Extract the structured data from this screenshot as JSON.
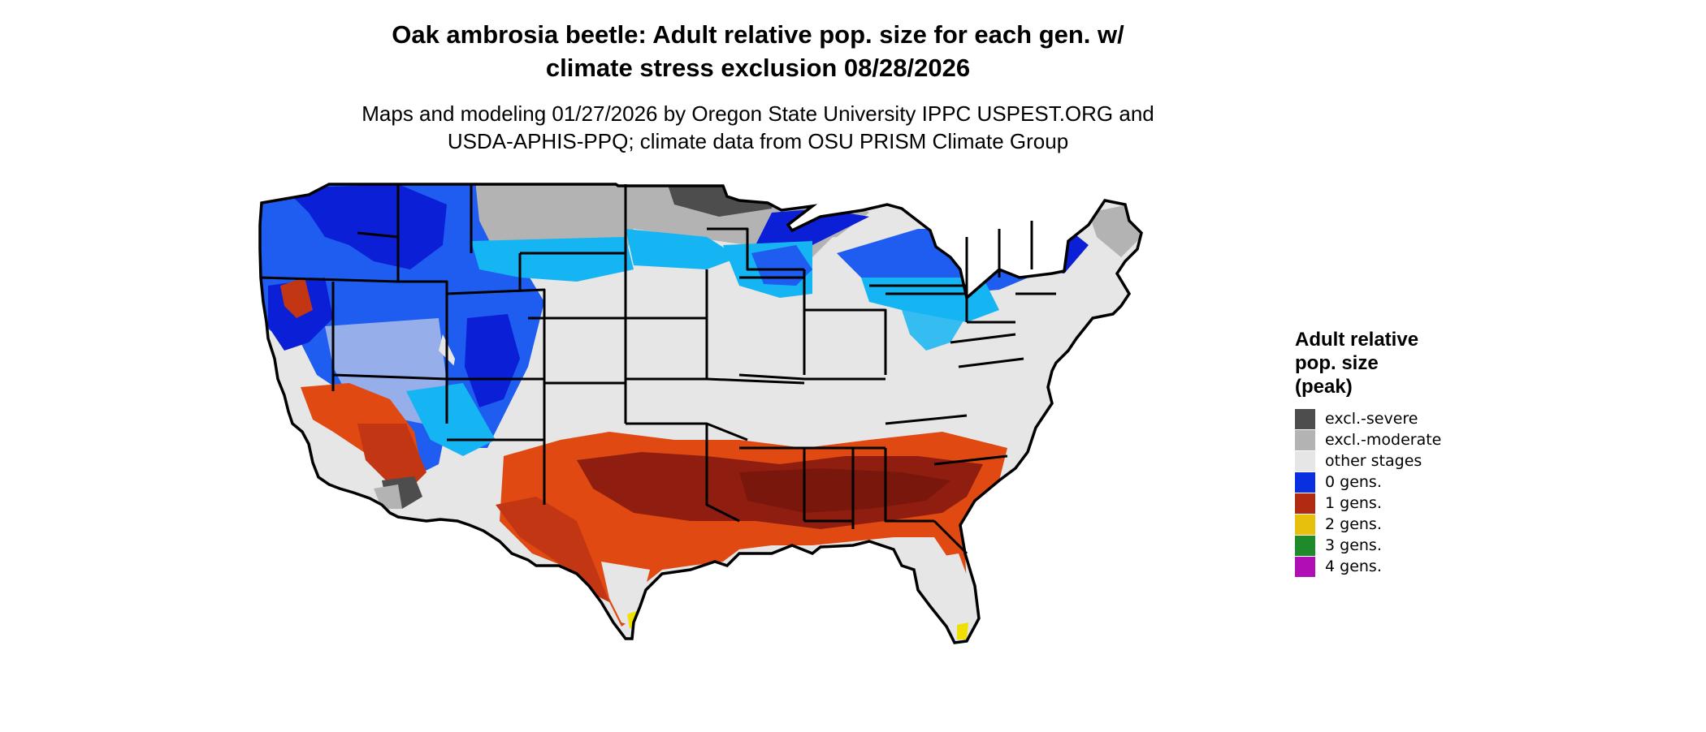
{
  "title_line1": "Oak ambrosia beetle: Adult relative pop. size for each gen. w/",
  "title_line2": "climate stress exclusion 08/28/2026",
  "subtitle_line1": "Maps and modeling 01/27/2026 by Oregon State University IPPC USPEST.ORG and",
  "subtitle_line2": "USDA-APHIS-PPQ; climate data from OSU PRISM Climate Group",
  "legend": {
    "title_line1": "Adult relative",
    "title_line2": "pop. size",
    "title_line3": "(peak)",
    "items": [
      {
        "label": "excl.-severe",
        "color": "#4d4d4d"
      },
      {
        "label": "excl.-moderate",
        "color": "#b3b3b3"
      },
      {
        "label": "other stages",
        "color": "#e6e6e6"
      },
      {
        "label": "0 gens.",
        "color": "#0a2fe0"
      },
      {
        "label": "1 gens.",
        "color": "#b32a12"
      },
      {
        "label": "2 gens.",
        "color": "#e6c00d"
      },
      {
        "label": "3 gens.",
        "color": "#1f8a2a"
      },
      {
        "label": "4 gens.",
        "color": "#b00fb5"
      }
    ]
  },
  "map_colors": {
    "blue_dark": "#0a1fd6",
    "blue_mid": "#1f5cf0",
    "blue_light": "#15b4f2",
    "red_dark": "#8f1e10",
    "red_mid": "#c23614",
    "red_bright": "#e04a12",
    "grey_light": "#e6e6e6",
    "grey_mid": "#b3b3b3",
    "grey_dark": "#4d4d4d",
    "yellow": "#f0e000",
    "border": "#000000"
  }
}
